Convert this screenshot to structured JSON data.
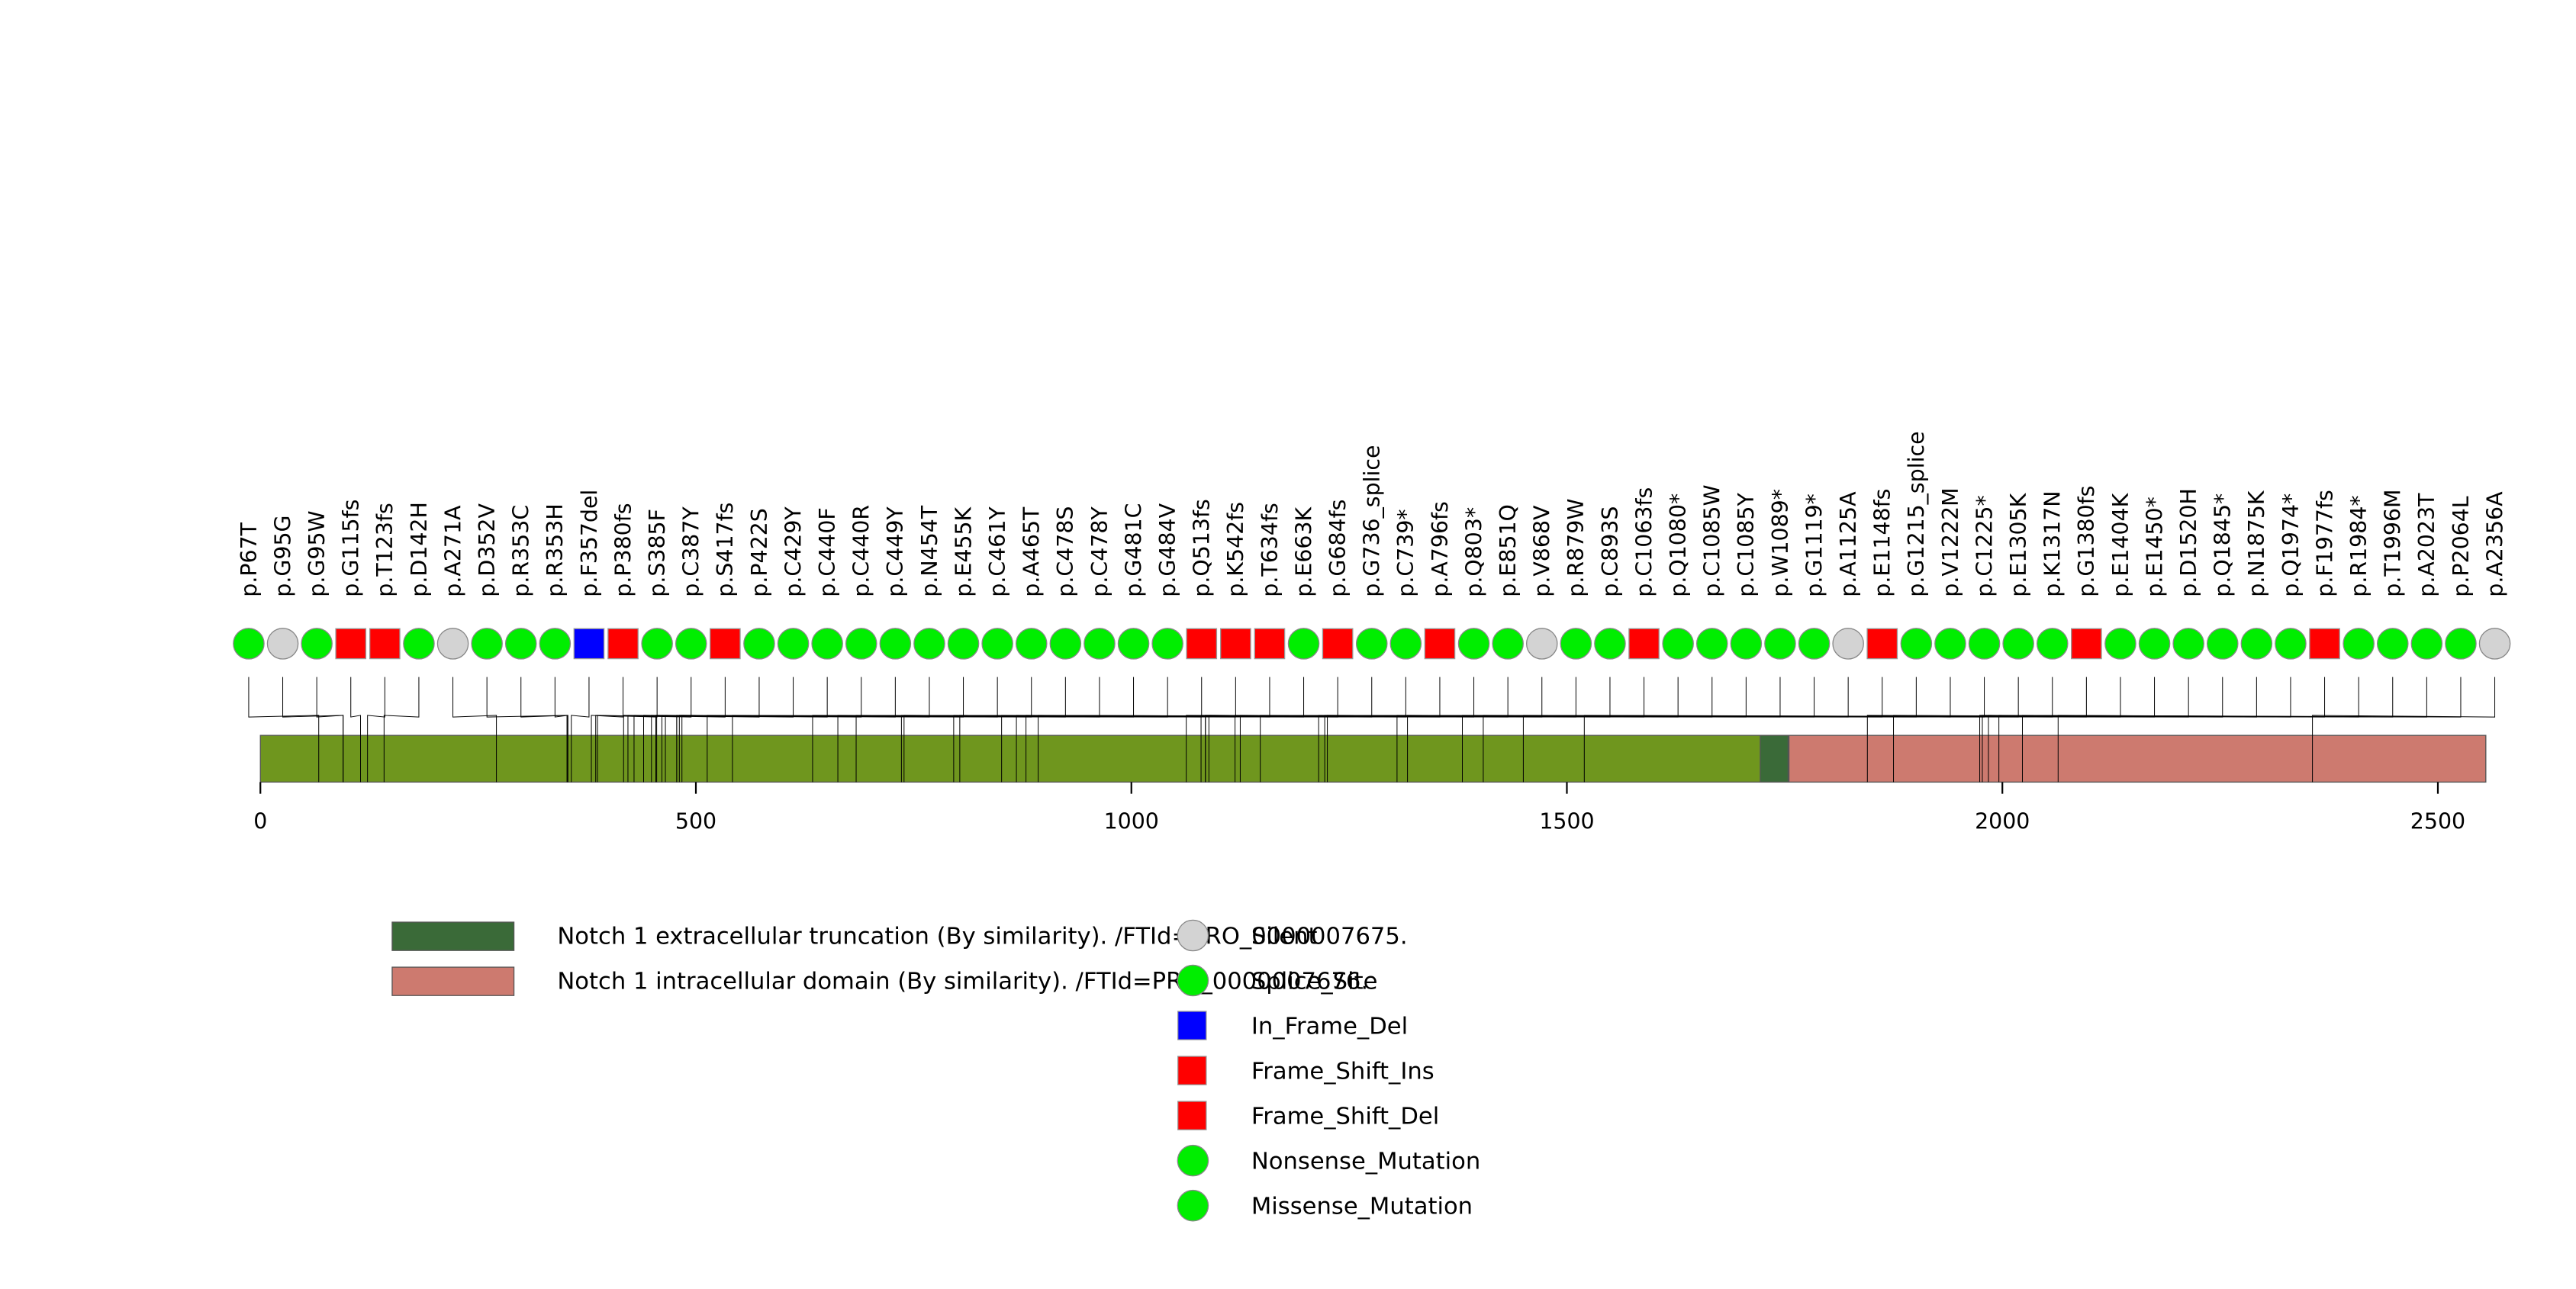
{
  "chart_data": {
    "type": "lollipop",
    "title": "",
    "xlabel": "",
    "ylabel": "",
    "xlim": [
      0,
      2555
    ],
    "x_ticks": [
      0,
      500,
      1000,
      1500,
      2000,
      2500
    ],
    "protein_length": 2555,
    "protein_color": "#6f961e",
    "domains": [
      {
        "name": "Notch 1 extracellular truncation (By similarity). /FTId=PRO_0000007675.",
        "start": 1722,
        "end": 1754,
        "color": "#3a6a38"
      },
      {
        "name": "Notch 1 intracellular domain (By similarity). /FTId=PRO_0000007676.",
        "start": 1755,
        "end": 2555,
        "color": "#cd7a6f"
      }
    ],
    "mutation_types": [
      {
        "name": "Silent",
        "shape": "circle",
        "color": "#d3d3d3"
      },
      {
        "name": "Splice_Site",
        "shape": "circle",
        "color": "#00ee00"
      },
      {
        "name": "In_Frame_Del",
        "shape": "square",
        "color": "#0000ff"
      },
      {
        "name": "Frame_Shift_Ins",
        "shape": "square",
        "color": "#ff0000"
      },
      {
        "name": "Frame_Shift_Del",
        "shape": "square",
        "color": "#ff0000"
      },
      {
        "name": "Nonsense_Mutation",
        "shape": "circle",
        "color": "#00ee00"
      },
      {
        "name": "Missense_Mutation",
        "shape": "circle",
        "color": "#00ee00"
      }
    ],
    "mutations": [
      {
        "label": "p.P67T",
        "position": 67,
        "type": "Missense_Mutation"
      },
      {
        "label": "p.G95G",
        "position": 95,
        "type": "Silent"
      },
      {
        "label": "p.G95W",
        "position": 95,
        "type": "Missense_Mutation"
      },
      {
        "label": "p.G115fs",
        "position": 115,
        "type": "Frame_Shift_Del"
      },
      {
        "label": "p.T123fs",
        "position": 123,
        "type": "Frame_Shift_Del"
      },
      {
        "label": "p.D142H",
        "position": 142,
        "type": "Missense_Mutation"
      },
      {
        "label": "p.A271A",
        "position": 271,
        "type": "Silent"
      },
      {
        "label": "p.D352V",
        "position": 352,
        "type": "Missense_Mutation"
      },
      {
        "label": "p.R353C",
        "position": 353,
        "type": "Missense_Mutation"
      },
      {
        "label": "p.R353H",
        "position": 353,
        "type": "Missense_Mutation"
      },
      {
        "label": "p.F357del",
        "position": 357,
        "type": "In_Frame_Del"
      },
      {
        "label": "p.P380fs",
        "position": 380,
        "type": "Frame_Shift_Del"
      },
      {
        "label": "p.S385F",
        "position": 385,
        "type": "Missense_Mutation"
      },
      {
        "label": "p.C387Y",
        "position": 387,
        "type": "Missense_Mutation"
      },
      {
        "label": "p.S417fs",
        "position": 417,
        "type": "Frame_Shift_Del"
      },
      {
        "label": "p.P422S",
        "position": 422,
        "type": "Missense_Mutation"
      },
      {
        "label": "p.C429Y",
        "position": 429,
        "type": "Missense_Mutation"
      },
      {
        "label": "p.C440F",
        "position": 440,
        "type": "Missense_Mutation"
      },
      {
        "label": "p.C440R",
        "position": 440,
        "type": "Missense_Mutation"
      },
      {
        "label": "p.C449Y",
        "position": 449,
        "type": "Missense_Mutation"
      },
      {
        "label": "p.N454T",
        "position": 454,
        "type": "Missense_Mutation"
      },
      {
        "label": "p.E455K",
        "position": 455,
        "type": "Missense_Mutation"
      },
      {
        "label": "p.C461Y",
        "position": 461,
        "type": "Missense_Mutation"
      },
      {
        "label": "p.A465T",
        "position": 465,
        "type": "Missense_Mutation"
      },
      {
        "label": "p.C478S",
        "position": 478,
        "type": "Missense_Mutation"
      },
      {
        "label": "p.C478Y",
        "position": 478,
        "type": "Missense_Mutation"
      },
      {
        "label": "p.G481C",
        "position": 481,
        "type": "Missense_Mutation"
      },
      {
        "label": "p.G484V",
        "position": 484,
        "type": "Missense_Mutation"
      },
      {
        "label": "p.Q513fs",
        "position": 513,
        "type": "Frame_Shift_Del"
      },
      {
        "label": "p.K542fs",
        "position": 542,
        "type": "Frame_Shift_Del"
      },
      {
        "label": "p.T634fs",
        "position": 634,
        "type": "Frame_Shift_Del"
      },
      {
        "label": "p.E663K",
        "position": 663,
        "type": "Missense_Mutation"
      },
      {
        "label": "p.G684fs",
        "position": 684,
        "type": "Frame_Shift_Del"
      },
      {
        "label": "p.G736_splice",
        "position": 736,
        "type": "Splice_Site"
      },
      {
        "label": "p.C739*",
        "position": 739,
        "type": "Nonsense_Mutation"
      },
      {
        "label": "p.A796fs",
        "position": 796,
        "type": "Frame_Shift_Del"
      },
      {
        "label": "p.Q803*",
        "position": 803,
        "type": "Nonsense_Mutation"
      },
      {
        "label": "p.E851Q",
        "position": 851,
        "type": "Missense_Mutation"
      },
      {
        "label": "p.V868V",
        "position": 868,
        "type": "Silent"
      },
      {
        "label": "p.R879W",
        "position": 879,
        "type": "Missense_Mutation"
      },
      {
        "label": "p.C893S",
        "position": 893,
        "type": "Missense_Mutation"
      },
      {
        "label": "p.C1063fs",
        "position": 1063,
        "type": "Frame_Shift_Del"
      },
      {
        "label": "p.Q1080*",
        "position": 1080,
        "type": "Nonsense_Mutation"
      },
      {
        "label": "p.C1085W",
        "position": 1085,
        "type": "Missense_Mutation"
      },
      {
        "label": "p.C1085Y",
        "position": 1085,
        "type": "Missense_Mutation"
      },
      {
        "label": "p.W1089*",
        "position": 1089,
        "type": "Nonsense_Mutation"
      },
      {
        "label": "p.G1119*",
        "position": 1119,
        "type": "Nonsense_Mutation"
      },
      {
        "label": "p.A1125A",
        "position": 1125,
        "type": "Silent"
      },
      {
        "label": "p.E1148fs",
        "position": 1148,
        "type": "Frame_Shift_Del"
      },
      {
        "label": "p.G1215_splice",
        "position": 1215,
        "type": "Splice_Site"
      },
      {
        "label": "p.V1222M",
        "position": 1222,
        "type": "Missense_Mutation"
      },
      {
        "label": "p.C1225*",
        "position": 1225,
        "type": "Nonsense_Mutation"
      },
      {
        "label": "p.E1305K",
        "position": 1305,
        "type": "Missense_Mutation"
      },
      {
        "label": "p.K1317N",
        "position": 1317,
        "type": "Missense_Mutation"
      },
      {
        "label": "p.G1380fs",
        "position": 1380,
        "type": "Frame_Shift_Del"
      },
      {
        "label": "p.E1404K",
        "position": 1404,
        "type": "Missense_Mutation"
      },
      {
        "label": "p.E1450*",
        "position": 1450,
        "type": "Nonsense_Mutation"
      },
      {
        "label": "p.D1520H",
        "position": 1520,
        "type": "Missense_Mutation"
      },
      {
        "label": "p.Q1845*",
        "position": 1845,
        "type": "Nonsense_Mutation"
      },
      {
        "label": "p.N1875K",
        "position": 1875,
        "type": "Missense_Mutation"
      },
      {
        "label": "p.Q1974*",
        "position": 1974,
        "type": "Nonsense_Mutation"
      },
      {
        "label": "p.F1977fs",
        "position": 1977,
        "type": "Frame_Shift_Del"
      },
      {
        "label": "p.R1984*",
        "position": 1984,
        "type": "Nonsense_Mutation"
      },
      {
        "label": "p.T1996M",
        "position": 1996,
        "type": "Missense_Mutation"
      },
      {
        "label": "p.A2023T",
        "position": 2023,
        "type": "Missense_Mutation"
      },
      {
        "label": "p.P2064L",
        "position": 2064,
        "type": "Missense_Mutation"
      },
      {
        "label": "p.A2356A",
        "position": 2356,
        "type": "Silent"
      }
    ]
  }
}
